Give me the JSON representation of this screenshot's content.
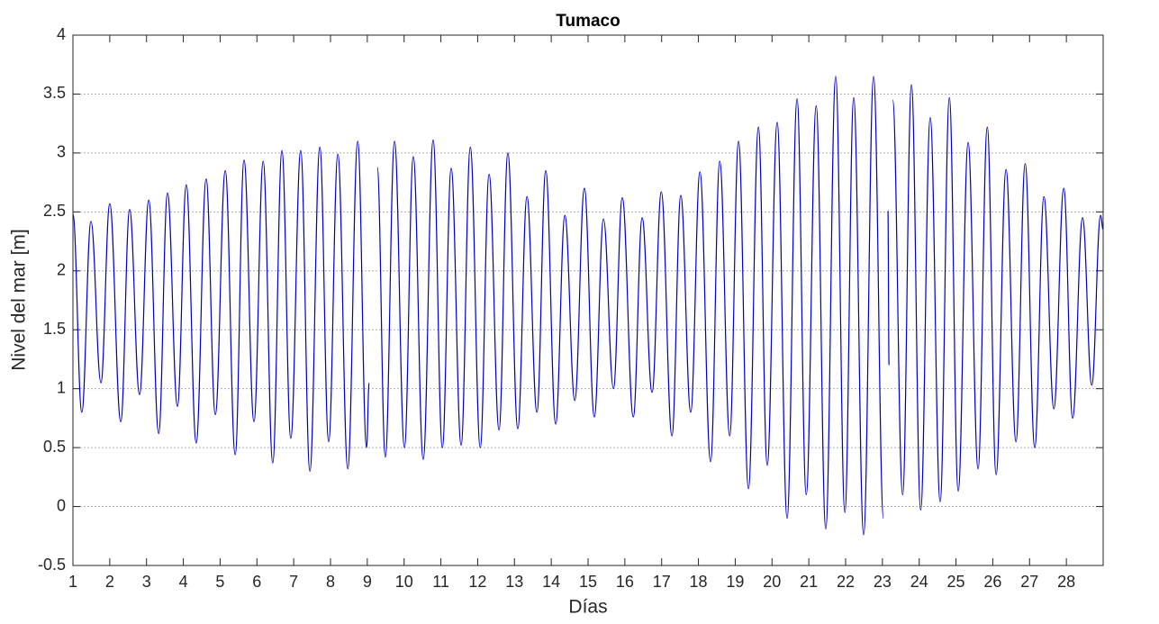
{
  "chart_data": {
    "type": "line",
    "title": "Tumaco",
    "xlabel": "Días",
    "ylabel": "Nivel del mar [m]",
    "xlim": [
      1,
      29
    ],
    "ylim": [
      -0.5,
      4
    ],
    "xticks": [
      1,
      2,
      3,
      4,
      5,
      6,
      7,
      8,
      9,
      10,
      11,
      12,
      13,
      14,
      15,
      16,
      17,
      18,
      19,
      20,
      21,
      22,
      23,
      24,
      25,
      26,
      27,
      28
    ],
    "yticks": [
      -0.5,
      0,
      0.5,
      1,
      1.5,
      2,
      2.5,
      3,
      3.5,
      4
    ],
    "grid": true,
    "series": [
      {
        "name": "Tumaco",
        "color": "#0000c8",
        "x": [
          1.0,
          1.24,
          1.49,
          1.76,
          2.0,
          2.3,
          2.54,
          2.81,
          3.06,
          3.33,
          3.57,
          3.84,
          4.08,
          4.35,
          4.62,
          4.87,
          5.14,
          5.41,
          5.65,
          5.92,
          6.17,
          6.43,
          6.68,
          6.92,
          7.19,
          7.44,
          7.71,
          7.95,
          8.2,
          8.47,
          8.74,
          8.98,
          9.05,
          null,
          9.27,
          9.49,
          9.74,
          10.01,
          10.25,
          10.52,
          10.79,
          11.04,
          11.28,
          11.55,
          11.8,
          12.07,
          12.31,
          12.58,
          12.82,
          13.09,
          13.34,
          13.61,
          13.85,
          14.12,
          14.37,
          14.64,
          14.9,
          15.17,
          15.42,
          15.69,
          15.93,
          16.23,
          16.47,
          16.74,
          16.99,
          17.28,
          17.52,
          17.79,
          18.04,
          18.33,
          18.58,
          18.85,
          19.09,
          19.36,
          19.63,
          19.87,
          20.14,
          20.41,
          20.68,
          20.93,
          21.2,
          21.46,
          21.73,
          21.98,
          22.22,
          22.49,
          22.76,
          23.03,
          null,
          23.15,
          23.18,
          null,
          23.28,
          23.55,
          23.79,
          24.04,
          24.3,
          24.57,
          24.82,
          25.06,
          25.33,
          25.6,
          25.85,
          26.09,
          26.36,
          26.63,
          26.88,
          27.14,
          27.39,
          27.66,
          27.93,
          28.17,
          28.44,
          28.69,
          28.93,
          29.0
        ],
        "values": [
          2.48,
          0.8,
          2.42,
          1.05,
          2.57,
          0.72,
          2.52,
          0.95,
          2.6,
          0.62,
          2.66,
          0.85,
          2.73,
          0.54,
          2.78,
          0.78,
          2.85,
          0.44,
          2.94,
          0.72,
          2.93,
          0.37,
          3.02,
          0.58,
          3.02,
          0.3,
          3.05,
          0.55,
          2.99,
          0.32,
          3.1,
          0.5,
          1.05,
          null,
          2.88,
          0.42,
          3.1,
          0.5,
          2.97,
          0.4,
          3.11,
          0.5,
          2.87,
          0.52,
          3.05,
          0.5,
          2.82,
          0.65,
          3.0,
          0.66,
          2.63,
          0.8,
          2.85,
          0.7,
          2.47,
          0.9,
          2.7,
          0.76,
          2.44,
          1.0,
          2.62,
          0.76,
          2.45,
          0.97,
          2.67,
          0.6,
          2.64,
          0.8,
          2.84,
          0.38,
          2.93,
          0.6,
          3.1,
          0.15,
          3.22,
          0.35,
          3.26,
          -0.1,
          3.46,
          0.1,
          3.4,
          -0.19,
          3.65,
          -0.05,
          3.47,
          -0.24,
          3.65,
          -0.1,
          null,
          2.51,
          1.2,
          null,
          3.45,
          0.1,
          3.58,
          -0.03,
          3.3,
          0.04,
          3.47,
          0.13,
          3.09,
          0.32,
          3.22,
          0.27,
          2.86,
          0.55,
          2.91,
          0.5,
          2.63,
          0.83,
          2.7,
          0.75,
          2.45,
          1.03,
          2.47,
          2.35
        ]
      }
    ]
  }
}
